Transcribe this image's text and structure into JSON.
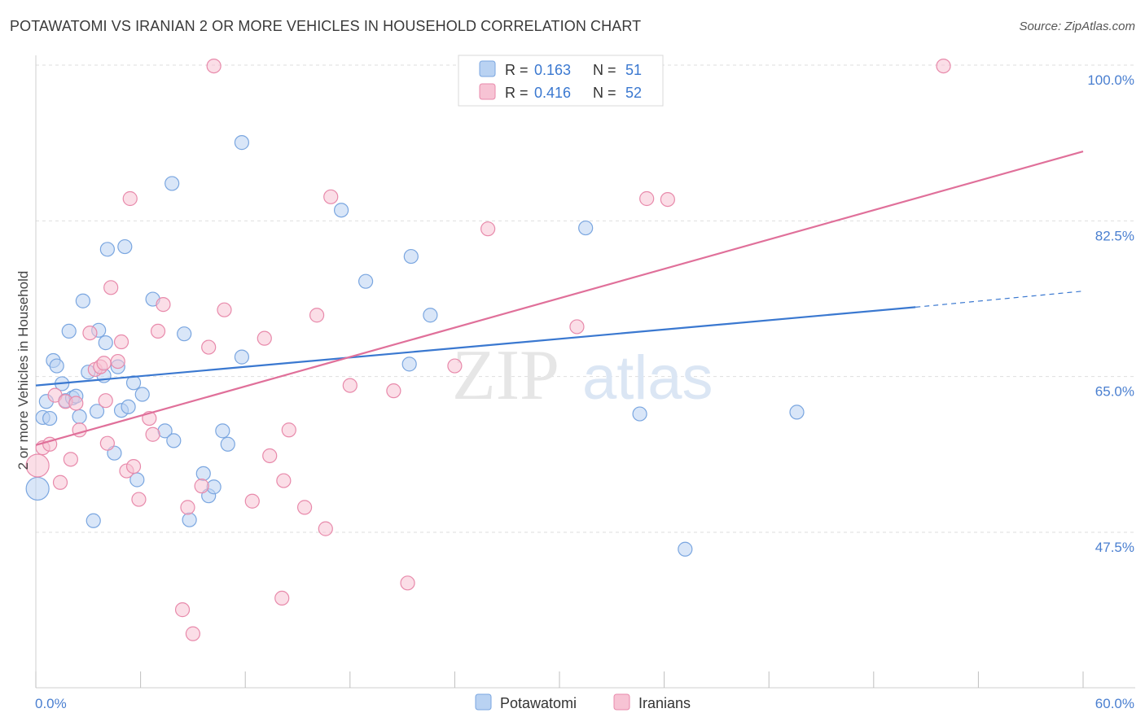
{
  "title": "POTAWATOMI VS IRANIAN 2 OR MORE VEHICLES IN HOUSEHOLD CORRELATION CHART",
  "source": "Source: ZipAtlas.com",
  "watermark": {
    "zip": "ZIP",
    "atlas": "atlas"
  },
  "legend": {
    "r_label": "R =",
    "n_label": "N =",
    "rows": [
      {
        "name": "Potawatomi",
        "r": "0.163",
        "n": "51",
        "fill": "#b9d2f2",
        "stroke": "#7aa6e0"
      },
      {
        "name": "Iranians",
        "r": "0.416",
        "n": "52",
        "fill": "#f7c3d4",
        "stroke": "#e88aab"
      }
    ]
  },
  "chart_data": {
    "type": "scatter",
    "title": "POTAWATOMI VS IRANIAN 2 OR MORE VEHICLES IN HOUSEHOLD CORRELATION CHART",
    "xlabel": "",
    "ylabel": "2 or more Vehicles in Household",
    "xlim": [
      0,
      60
    ],
    "ylim": [
      30,
      101
    ],
    "x_tick_labels": [
      "0.0%",
      "60.0%"
    ],
    "y_ticks": [
      47.5,
      65.0,
      82.5,
      100.0
    ],
    "y_tick_labels": [
      "47.5%",
      "65.0%",
      "82.5%",
      "100.0%"
    ],
    "grid": true,
    "legend_position": "top-center",
    "series": [
      {
        "name": "Potawatomi",
        "color": "#3a78d0",
        "fill": "#b9d2f2",
        "trend": {
          "x0": 0,
          "y0": 64.0,
          "x1": 50.4,
          "y1": 72.8,
          "dash_x1": 60,
          "dash_y1": 74.6
        },
        "points": [
          {
            "x": 0.1,
            "y": 52.4,
            "r": 14
          },
          {
            "x": 0.4,
            "y": 60.4
          },
          {
            "x": 0.6,
            "y": 62.2
          },
          {
            "x": 0.8,
            "y": 60.3
          },
          {
            "x": 1.0,
            "y": 66.8
          },
          {
            "x": 1.2,
            "y": 66.2
          },
          {
            "x": 1.5,
            "y": 64.2
          },
          {
            "x": 1.7,
            "y": 62.3
          },
          {
            "x": 1.9,
            "y": 70.1
          },
          {
            "x": 2.1,
            "y": 62.6
          },
          {
            "x": 2.3,
            "y": 62.8
          },
          {
            "x": 2.5,
            "y": 60.5
          },
          {
            "x": 2.7,
            "y": 73.5
          },
          {
            "x": 3.0,
            "y": 65.5
          },
          {
            "x": 3.3,
            "y": 48.8
          },
          {
            "x": 3.5,
            "y": 61.1
          },
          {
            "x": 3.6,
            "y": 70.2
          },
          {
            "x": 3.9,
            "y": 65.1
          },
          {
            "x": 4.0,
            "y": 68.8
          },
          {
            "x": 4.1,
            "y": 79.3
          },
          {
            "x": 4.5,
            "y": 56.4
          },
          {
            "x": 4.7,
            "y": 66.1
          },
          {
            "x": 4.9,
            "y": 61.2
          },
          {
            "x": 5.1,
            "y": 79.6
          },
          {
            "x": 5.3,
            "y": 61.6
          },
          {
            "x": 5.6,
            "y": 64.3
          },
          {
            "x": 5.8,
            "y": 53.4
          },
          {
            "x": 6.1,
            "y": 63.0
          },
          {
            "x": 6.7,
            "y": 73.7
          },
          {
            "x": 7.4,
            "y": 58.9
          },
          {
            "x": 7.8,
            "y": 86.7
          },
          {
            "x": 7.9,
            "y": 57.8
          },
          {
            "x": 8.5,
            "y": 69.8
          },
          {
            "x": 8.8,
            "y": 48.9
          },
          {
            "x": 9.6,
            "y": 54.1
          },
          {
            "x": 9.9,
            "y": 51.6
          },
          {
            "x": 10.2,
            "y": 52.6
          },
          {
            "x": 10.7,
            "y": 58.9
          },
          {
            "x": 11.0,
            "y": 57.4
          },
          {
            "x": 11.8,
            "y": 67.2
          },
          {
            "x": 11.8,
            "y": 91.3
          },
          {
            "x": 17.5,
            "y": 83.7
          },
          {
            "x": 18.9,
            "y": 75.7
          },
          {
            "x": 21.4,
            "y": 66.4
          },
          {
            "x": 21.5,
            "y": 78.5
          },
          {
            "x": 22.6,
            "y": 71.9
          },
          {
            "x": 25.5,
            "y": 100.0
          },
          {
            "x": 31.5,
            "y": 81.7
          },
          {
            "x": 34.6,
            "y": 60.8
          },
          {
            "x": 37.2,
            "y": 45.6
          },
          {
            "x": 43.6,
            "y": 61.0
          }
        ]
      },
      {
        "name": "Iranians",
        "color": "#e0709a",
        "fill": "#f7c3d4",
        "trend": {
          "x0": 0,
          "y0": 57.3,
          "x1": 60,
          "y1": 90.3
        },
        "points": [
          {
            "x": 0.1,
            "y": 55.0,
            "r": 14
          },
          {
            "x": 0.4,
            "y": 57.0
          },
          {
            "x": 0.8,
            "y": 57.4
          },
          {
            "x": 1.1,
            "y": 62.9
          },
          {
            "x": 1.4,
            "y": 53.1
          },
          {
            "x": 1.7,
            "y": 62.2
          },
          {
            "x": 2.0,
            "y": 55.7
          },
          {
            "x": 2.3,
            "y": 62.0
          },
          {
            "x": 2.5,
            "y": 59.0
          },
          {
            "x": 3.1,
            "y": 69.9
          },
          {
            "x": 3.4,
            "y": 65.8
          },
          {
            "x": 3.7,
            "y": 66.1
          },
          {
            "x": 3.9,
            "y": 66.5
          },
          {
            "x": 4.0,
            "y": 62.3
          },
          {
            "x": 4.1,
            "y": 57.5
          },
          {
            "x": 4.3,
            "y": 75.0
          },
          {
            "x": 4.7,
            "y": 66.7
          },
          {
            "x": 4.9,
            "y": 68.9
          },
          {
            "x": 5.2,
            "y": 54.4
          },
          {
            "x": 5.4,
            "y": 85.0
          },
          {
            "x": 5.6,
            "y": 54.9
          },
          {
            "x": 5.9,
            "y": 51.2
          },
          {
            "x": 6.5,
            "y": 60.3
          },
          {
            "x": 6.7,
            "y": 58.5
          },
          {
            "x": 7.0,
            "y": 70.1
          },
          {
            "x": 7.3,
            "y": 73.1
          },
          {
            "x": 8.4,
            "y": 38.8
          },
          {
            "x": 8.7,
            "y": 50.3
          },
          {
            "x": 9.0,
            "y": 36.1
          },
          {
            "x": 9.5,
            "y": 52.7
          },
          {
            "x": 9.9,
            "y": 68.3
          },
          {
            "x": 10.2,
            "y": 99.9
          },
          {
            "x": 10.8,
            "y": 72.5
          },
          {
            "x": 12.4,
            "y": 51.0
          },
          {
            "x": 13.1,
            "y": 69.3
          },
          {
            "x": 13.4,
            "y": 56.1
          },
          {
            "x": 14.1,
            "y": 40.1
          },
          {
            "x": 14.2,
            "y": 53.3
          },
          {
            "x": 14.5,
            "y": 59.0
          },
          {
            "x": 15.4,
            "y": 50.3
          },
          {
            "x": 16.1,
            "y": 71.9
          },
          {
            "x": 16.6,
            "y": 47.9
          },
          {
            "x": 16.9,
            "y": 85.2
          },
          {
            "x": 18.0,
            "y": 64.0
          },
          {
            "x": 20.5,
            "y": 63.4
          },
          {
            "x": 21.3,
            "y": 41.8
          },
          {
            "x": 25.9,
            "y": 81.6
          },
          {
            "x": 31.0,
            "y": 70.6
          },
          {
            "x": 35.0,
            "y": 85.0
          },
          {
            "x": 36.2,
            "y": 84.9
          },
          {
            "x": 52.0,
            "y": 99.9
          },
          {
            "x": 24.0,
            "y": 66.2
          }
        ]
      }
    ]
  }
}
